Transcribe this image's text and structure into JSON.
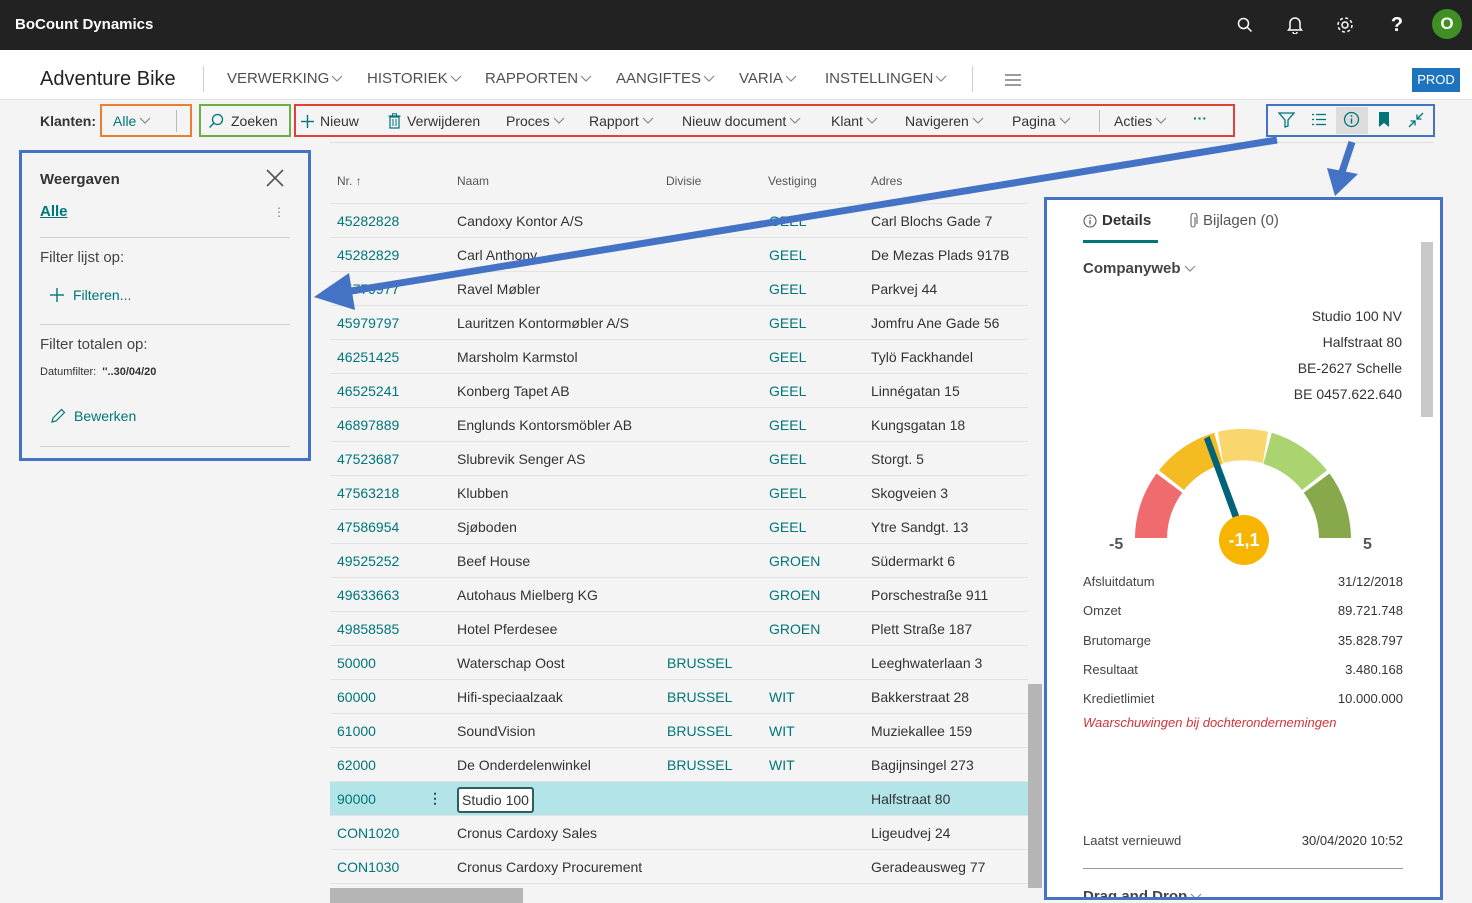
{
  "app": {
    "name": "BoCount Dynamics",
    "avatar_initial": "O"
  },
  "header": {
    "company": "Adventure Bike",
    "menu": [
      "VERWERKING",
      "HISTORIEK",
      "RAPPORTEN",
      "AANGIFTES",
      "VARIA",
      "INSTELLINGEN"
    ],
    "env_badge": "PROD"
  },
  "actionbar": {
    "klanten_label": "Klanten:",
    "filter_value": "Alle",
    "search_label": "Zoeken",
    "actions": [
      "Nieuw",
      "Verwijderen",
      "Proces",
      "Rapport",
      "Nieuw document",
      "Klant",
      "Navigeren",
      "Pagina",
      "Acties"
    ],
    "more": "···"
  },
  "views_pane": {
    "title": "Weergaven",
    "active_view": "Alle",
    "menu_dots": "⋮",
    "filter_list_label": "Filter lijst op:",
    "filter_link": "Filteren...",
    "filter_totals_label": "Filter totalen op:",
    "date_filter_label": "Datumfilter:",
    "date_filter_value": "''..30/04/20",
    "edit_link": "Bewerken"
  },
  "table": {
    "columns": [
      "Nr. ↑",
      "Naam",
      "Divisie",
      "Vestiging",
      "Adres"
    ],
    "rows": [
      {
        "nr": "45282828",
        "naam": "Candoxy Kontor A/S",
        "divisie": "",
        "vestiging": "GEEL",
        "adres": "Carl Blochs Gade 7"
      },
      {
        "nr": "45282829",
        "naam": "Carl Anthony",
        "divisie": "",
        "vestiging": "GEEL",
        "adres": "De Mezas Plads 917B"
      },
      {
        "nr": "45779977",
        "naam": "Ravel Møbler",
        "divisie": "",
        "vestiging": "GEEL",
        "adres": "Parkvej 44"
      },
      {
        "nr": "45979797",
        "naam": "Lauritzen Kontormøbler A/S",
        "divisie": "",
        "vestiging": "GEEL",
        "adres": "Jomfru Ane Gade 56"
      },
      {
        "nr": "46251425",
        "naam": "Marsholm Karmstol",
        "divisie": "",
        "vestiging": "GEEL",
        "adres": "Tylö Fackhandel"
      },
      {
        "nr": "46525241",
        "naam": "Konberg Tapet AB",
        "divisie": "",
        "vestiging": "GEEL",
        "adres": "Linnégatan 15"
      },
      {
        "nr": "46897889",
        "naam": "Englunds Kontorsmöbler AB",
        "divisie": "",
        "vestiging": "GEEL",
        "adres": "Kungsgatan 18"
      },
      {
        "nr": "47523687",
        "naam": "Slubrevik Senger AS",
        "divisie": "",
        "vestiging": "GEEL",
        "adres": "Storgt. 5"
      },
      {
        "nr": "47563218",
        "naam": "Klubben",
        "divisie": "",
        "vestiging": "GEEL",
        "adres": "Skogveien 3"
      },
      {
        "nr": "47586954",
        "naam": "Sjøboden",
        "divisie": "",
        "vestiging": "GEEL",
        "adres": "Ytre Sandgt. 13"
      },
      {
        "nr": "49525252",
        "naam": "Beef House",
        "divisie": "",
        "vestiging": "GROEN",
        "adres": "Südermarkt 6"
      },
      {
        "nr": "49633663",
        "naam": "Autohaus Mielberg KG",
        "divisie": "",
        "vestiging": "GROEN",
        "adres": "Porschestraße 911"
      },
      {
        "nr": "49858585",
        "naam": "Hotel Pferdesee",
        "divisie": "",
        "vestiging": "GROEN",
        "adres": "Plett Straße 187"
      },
      {
        "nr": "50000",
        "naam": "Waterschap Oost",
        "divisie": "BRUSSEL",
        "vestiging": "",
        "adres": "Leeghwaterlaan 3"
      },
      {
        "nr": "60000",
        "naam": "Hifi-speciaalzaak",
        "divisie": "BRUSSEL",
        "vestiging": "WIT",
        "adres": "Bakkerstraat 28"
      },
      {
        "nr": "61000",
        "naam": "SoundVision",
        "divisie": "BRUSSEL",
        "vestiging": "WIT",
        "adres": "Muziekallee 159"
      },
      {
        "nr": "62000",
        "naam": "De Onderdelenwinkel",
        "divisie": "BRUSSEL",
        "vestiging": "WIT",
        "adres": "Bagijnsingel 273"
      },
      {
        "nr": "90000",
        "naam": "Studio 100",
        "divisie": "",
        "vestiging": "",
        "adres": "Halfstraat 80",
        "selected": true
      },
      {
        "nr": "CON1020",
        "naam": "Cronus Cardoxy Sales",
        "divisie": "",
        "vestiging": "",
        "adres": "Ligeudvej 24"
      },
      {
        "nr": "CON1030",
        "naam": "Cronus Cardoxy Procurement",
        "divisie": "",
        "vestiging": "",
        "adres": "Geradeausweg 77"
      }
    ]
  },
  "factbox": {
    "tabs": {
      "details": "Details",
      "attachments": "Bijlagen (0)"
    },
    "section": "Companyweb",
    "address": [
      "Studio 100 NV",
      "Halfstraat 80",
      "BE-2627 Schelle",
      "BE 0457.622.640"
    ],
    "gauge": {
      "min": "-5",
      "max": "5",
      "value": -1.1,
      "value_label": "-1,1"
    },
    "fields": [
      {
        "label": "Afsluitdatum",
        "value": "31/12/2018"
      },
      {
        "label": "Omzet",
        "value": "89.721.748"
      },
      {
        "label": "Brutomarge",
        "value": "35.828.797"
      },
      {
        "label": "Resultaat",
        "value": "3.480.168"
      },
      {
        "label": "Kredietlimiet",
        "value": "10.000.000"
      }
    ],
    "warning": "Waarschuwingen bij dochterondernemingen",
    "refreshed_label": "Laatst vernieuwd",
    "refreshed_value": "30/04/2020 10:52",
    "next_section": "Drag and Drop"
  },
  "colors": {
    "teal": "#00757a",
    "highlight_orange": "#ed7d31",
    "highlight_green": "#70ad47",
    "highlight_red": "#e0403a",
    "highlight_blue": "#4472c4",
    "selected_row": "#b3e5e8"
  }
}
